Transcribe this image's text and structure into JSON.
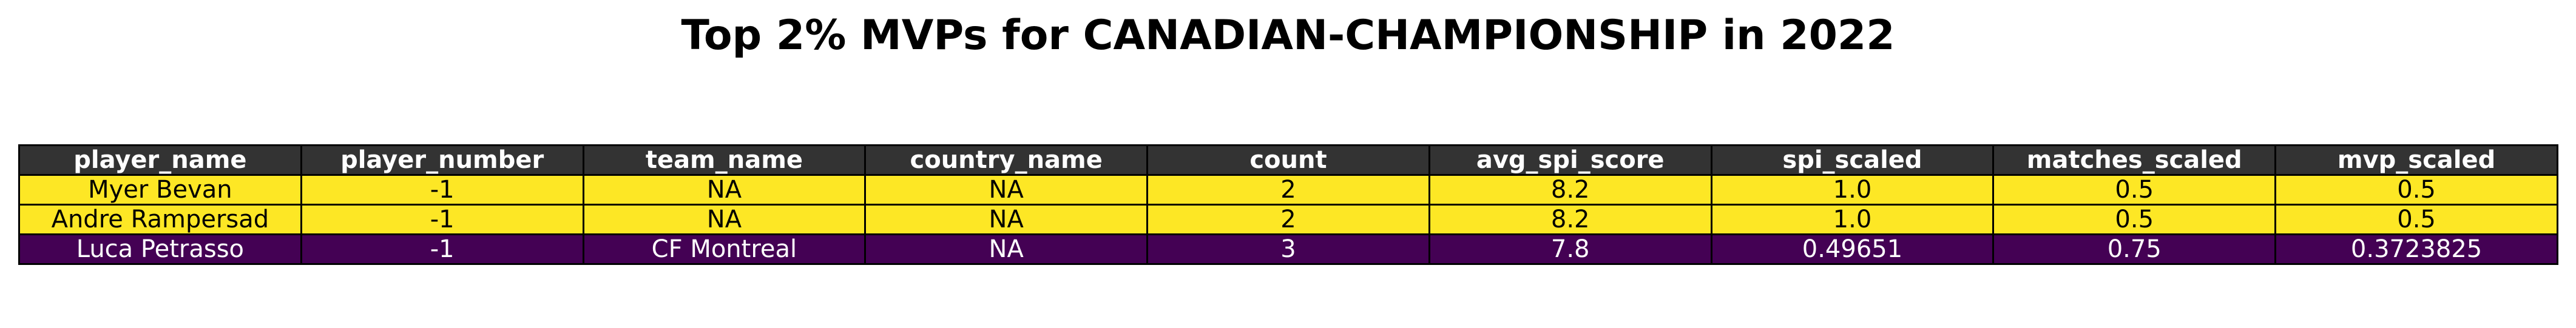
{
  "title": "Top 2% MVPs for CANADIAN-CHAMPIONSHIP in 2022",
  "colors": {
    "header_bg": "#333333",
    "header_text": "#ffffff",
    "row_highlight": "#fde725",
    "row_highlight_text": "#000000",
    "row_low": "#440154",
    "row_low_text": "#ffffff",
    "border": "#000000"
  },
  "chart_data": {
    "type": "table",
    "title": "Top 2% MVPs for CANADIAN-CHAMPIONSHIP in 2022",
    "columns": [
      "player_name",
      "player_number",
      "team_name",
      "country_name",
      "count",
      "avg_spi_score",
      "spi_scaled",
      "matches_scaled",
      "mvp_scaled"
    ],
    "rows": [
      [
        "Myer Bevan",
        "-1",
        "NA",
        "NA",
        "2",
        "8.2",
        "1.0",
        "0.5",
        "0.5"
      ],
      [
        "Andre Rampersad",
        "-1",
        "NA",
        "NA",
        "2",
        "8.2",
        "1.0",
        "0.5",
        "0.5"
      ],
      [
        "Luca Petrasso",
        "-1",
        "CF Montreal",
        "NA",
        "3",
        "7.8",
        "0.49651",
        "0.75",
        "0.3723825"
      ]
    ],
    "row_colors": [
      "#fde725",
      "#fde725",
      "#440154"
    ],
    "row_text_colors": [
      "#000000",
      "#000000",
      "#ffffff"
    ]
  }
}
